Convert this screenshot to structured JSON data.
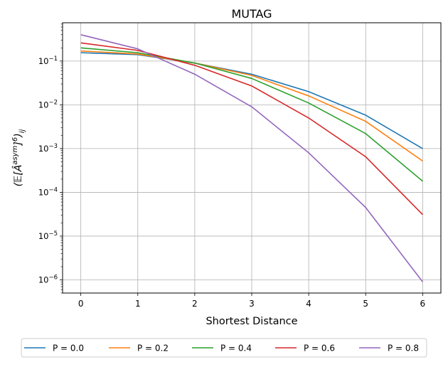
{
  "chart_data": {
    "type": "line",
    "title": "MUTAG",
    "xlabel": "Shortest Distance",
    "ylabel": "(𝔼[Â^{asym}]^6)_ij",
    "yscale": "log",
    "grid": true,
    "legend_position": "bottom",
    "xlim": [
      -0.32,
      6.32
    ],
    "ylim": [
      5e-07,
      0.75
    ],
    "x": [
      0,
      1,
      2,
      3,
      4,
      5,
      6
    ],
    "x_tick_labels": [
      "0",
      "1",
      "2",
      "3",
      "4",
      "5",
      "6"
    ],
    "y_ticks": [
      {
        "exp": -6,
        "label": "10−6"
      },
      {
        "exp": -5,
        "label": "10−5"
      },
      {
        "exp": -4,
        "label": "10−4"
      },
      {
        "exp": -3,
        "label": "10−3"
      },
      {
        "exp": -2,
        "label": "10−2"
      },
      {
        "exp": -1,
        "label": "10−1"
      }
    ],
    "series": [
      {
        "name": "P = 0.0",
        "color": "#1f77b4",
        "values": [
          0.155,
          0.14,
          0.09,
          0.05,
          0.02,
          0.0058,
          0.001
        ]
      },
      {
        "name": "P = 0.2",
        "color": "#ff7f0e",
        "values": [
          0.17,
          0.145,
          0.09,
          0.047,
          0.016,
          0.0042,
          0.00052
        ]
      },
      {
        "name": "P = 0.4",
        "color": "#2ca02c",
        "values": [
          0.2,
          0.155,
          0.09,
          0.04,
          0.011,
          0.0022,
          0.00018
        ]
      },
      {
        "name": "P = 0.6",
        "color": "#d62728",
        "values": [
          0.26,
          0.175,
          0.08,
          0.027,
          0.005,
          0.00065,
          3.1e-05
        ]
      },
      {
        "name": "P = 0.8",
        "color": "#9467bd",
        "values": [
          0.4,
          0.19,
          0.05,
          0.009,
          0.0008,
          4.5e-05,
          9e-07
        ]
      }
    ]
  }
}
